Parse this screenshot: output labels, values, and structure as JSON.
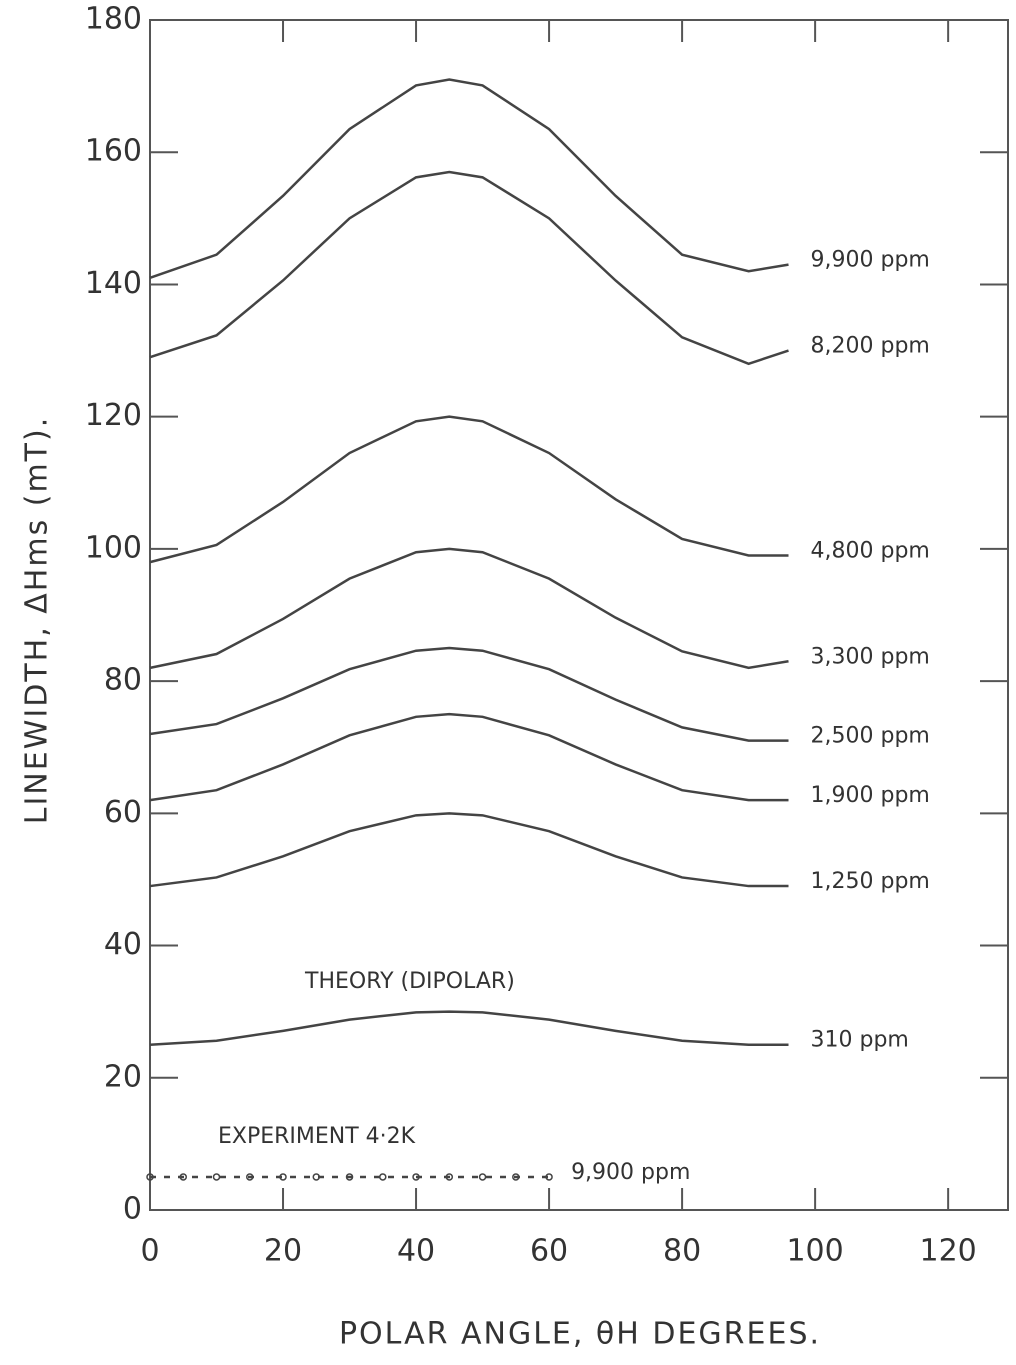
{
  "chart_data": {
    "type": "line",
    "x_label": "POLAR ANGLE, θH DEGREES.",
    "y_label": "LINEWIDTH, ΔHms (mT).",
    "annotations": [
      "THEORY (DIPOLAR)",
      "EXPERIMENT 4·2K"
    ],
    "x": [
      0,
      10,
      20,
      30,
      40,
      45,
      50,
      60,
      70,
      80,
      90,
      96
    ],
    "series": [
      {
        "name": "9,900 ppm",
        "color": "#444",
        "values": [
          141,
          144.5,
          153.4,
          163.5,
          170.1,
          171,
          170.1,
          163.5,
          153.4,
          144.5,
          142,
          143
        ]
      },
      {
        "name": "8,200 ppm",
        "color": "#444",
        "values": [
          129,
          132.3,
          140.6,
          150,
          156.2,
          157,
          156.2,
          150,
          140.6,
          132,
          128,
          130
        ]
      },
      {
        "name": "4,800 ppm",
        "color": "#444",
        "values": [
          98,
          100.6,
          107.1,
          114.5,
          119.3,
          120,
          119.3,
          114.5,
          107.5,
          101.5,
          99,
          99
        ]
      },
      {
        "name": "3,300 ppm",
        "color": "#444",
        "values": [
          82,
          84.1,
          89.4,
          95.5,
          99.5,
          100,
          99.5,
          95.5,
          89.6,
          84.5,
          82,
          83
        ]
      },
      {
        "name": "2,500 ppm",
        "color": "#444",
        "values": [
          72,
          73.5,
          77.4,
          81.8,
          84.6,
          85,
          84.6,
          81.8,
          77.2,
          73,
          71,
          71
        ]
      },
      {
        "name": "1,900 ppm",
        "color": "#444",
        "values": [
          62,
          63.5,
          67.4,
          71.8,
          74.6,
          75,
          74.6,
          71.8,
          67.4,
          63.5,
          62,
          62
        ]
      },
      {
        "name": "1,250 ppm",
        "color": "#444",
        "values": [
          49,
          50.3,
          53.5,
          57.3,
          59.7,
          60,
          59.7,
          57.3,
          53.5,
          50.3,
          49,
          49
        ]
      },
      {
        "name": "310 ppm",
        "color": "#444",
        "values": [
          25,
          25.6,
          27.1,
          28.8,
          29.9,
          30,
          29.9,
          28.8,
          27.1,
          25.6,
          25,
          25
        ]
      },
      {
        "name": "9,900 ppm",
        "color": "#444",
        "dotted": true,
        "x": [
          0,
          5,
          10,
          15,
          20,
          25,
          30,
          35,
          40,
          45,
          50,
          55,
          60
        ],
        "values": [
          5,
          5,
          5,
          5,
          5,
          5,
          5,
          5,
          5,
          5,
          5,
          5,
          5
        ]
      }
    ],
    "xlim": [
      0,
      129
    ],
    "xticks": [
      0,
      20,
      40,
      60,
      80,
      100,
      120
    ],
    "ylim": [
      0,
      180
    ],
    "yticks": [
      0,
      20,
      40,
      60,
      80,
      100,
      120,
      140,
      160,
      180
    ]
  }
}
